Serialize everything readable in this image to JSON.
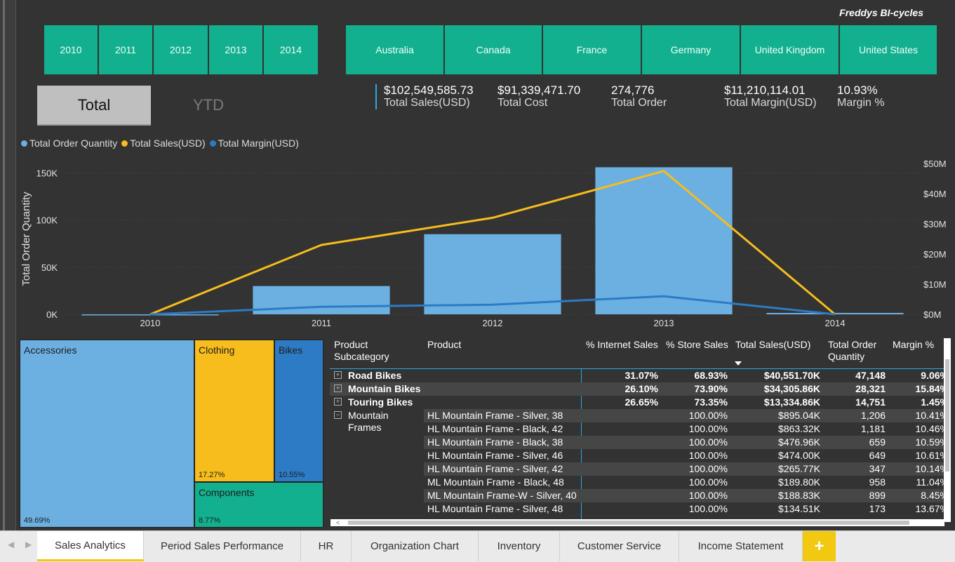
{
  "brand": "Freddys BI-cycles",
  "year_slicers": [
    "2010",
    "2011",
    "2012",
    "2013",
    "2014"
  ],
  "country_slicers": [
    "Australia",
    "Canada",
    "France",
    "Germany",
    "United Kingdom",
    "United States"
  ],
  "toggle": {
    "total": "Total",
    "ytd": "YTD"
  },
  "kpis": [
    {
      "value": "$102,549,585.73",
      "label": "Total Sales(USD)"
    },
    {
      "value": "$91,339,471.70",
      "label": "Total Cost"
    },
    {
      "value": "274,776",
      "label": "Total Order"
    },
    {
      "value": "$11,210,114.01",
      "label": "Total Margin(USD)"
    },
    {
      "value": "10.93%",
      "label": "Margin %"
    }
  ],
  "legend": [
    {
      "label": "Total Order Quantity",
      "color": "#6cb0e2"
    },
    {
      "label": "Total Sales(USD)",
      "color": "#f6bd1c"
    },
    {
      "label": "Total Margin(USD)",
      "color": "#2d7bc4"
    }
  ],
  "chart_data": {
    "type": "bar",
    "categories": [
      "2010",
      "2011",
      "2012",
      "2013",
      "2014"
    ],
    "ylabel": "Total Order Quantity",
    "y_ticks": [
      "0K",
      "50K",
      "100K",
      "150K"
    ],
    "y2_ticks": [
      "$0M",
      "$10M",
      "$20M",
      "$30M",
      "$40M",
      "$50M"
    ],
    "ylim": [
      0,
      160000
    ],
    "y2lim": [
      0,
      50000000
    ],
    "series": [
      {
        "name": "Total Order Quantity",
        "kind": "bar",
        "axis": "left",
        "color": "#6cb0e2",
        "values": [
          0,
          30000,
          85000,
          156000,
          1500
        ]
      },
      {
        "name": "Total Sales(USD)",
        "kind": "line",
        "axis": "right",
        "color": "#f6bd1c",
        "values": [
          0,
          23000000,
          32000000,
          47500000,
          0
        ]
      },
      {
        "name": "Total Margin(USD)",
        "kind": "line",
        "axis": "right",
        "color": "#2d7bc4",
        "values": [
          0,
          2500000,
          3200000,
          6000000,
          0
        ]
      }
    ],
    "grid": true
  },
  "treemap": {
    "accessories": {
      "name": "Accessories",
      "pct": "49.69%",
      "color": "#6cb0e2"
    },
    "clothing": {
      "name": "Clothing",
      "pct": "17.27%",
      "color": "#f6bd1c"
    },
    "bikes": {
      "name": "Bikes",
      "pct": "10.55%",
      "color": "#2d7bc4"
    },
    "components": {
      "name": "Components",
      "pct": "8.77%",
      "color": "#12b08f"
    }
  },
  "matrix": {
    "headers": [
      "Product Subcategory",
      "Product",
      "% Internet Sales",
      "% Store Sales",
      "Total Sales(USD)",
      "Total Order Quantity",
      "Margin %"
    ],
    "group_rows": [
      {
        "sub": "Road Bikes",
        "internet": "31.07%",
        "store": "68.93%",
        "sales": "$40,551.70K",
        "qty": "47,148",
        "margin": "9.06%"
      },
      {
        "sub": "Mountain Bikes",
        "internet": "26.10%",
        "store": "73.90%",
        "sales": "$34,305.86K",
        "qty": "28,321",
        "margin": "15.84%"
      },
      {
        "sub": "Touring Bikes",
        "internet": "26.65%",
        "store": "73.35%",
        "sales": "$13,334.86K",
        "qty": "14,751",
        "margin": "1.45%"
      }
    ],
    "expanded": {
      "sub_line1": "Mountain",
      "sub_line2": "Frames",
      "rows": [
        {
          "product": "HL Mountain Frame - Silver, 38",
          "store": "100.00%",
          "sales": "$895.04K",
          "qty": "1,206",
          "margin": "10.41%"
        },
        {
          "product": "HL Mountain Frame - Black, 42",
          "store": "100.00%",
          "sales": "$863.32K",
          "qty": "1,181",
          "margin": "10.46%"
        },
        {
          "product": "HL Mountain Frame - Black, 38",
          "store": "100.00%",
          "sales": "$476.96K",
          "qty": "659",
          "margin": "10.59%"
        },
        {
          "product": "HL Mountain Frame - Silver, 46",
          "store": "100.00%",
          "sales": "$474.00K",
          "qty": "649",
          "margin": "10.61%"
        },
        {
          "product": "HL Mountain Frame - Silver, 42",
          "store": "100.00%",
          "sales": "$265.77K",
          "qty": "347",
          "margin": "10.14%"
        },
        {
          "product": "ML Mountain Frame - Black, 48",
          "store": "100.00%",
          "sales": "$189.80K",
          "qty": "958",
          "margin": "11.04%"
        },
        {
          "product": "ML Mountain Frame-W - Silver, 40",
          "store": "100.00%",
          "sales": "$188.83K",
          "qty": "899",
          "margin": "8.45%"
        },
        {
          "product": "HL Mountain Frame - Silver, 48",
          "store": "100.00%",
          "sales": "$134.51K",
          "qty": "173",
          "margin": "13.67%"
        }
      ]
    }
  },
  "tabs": [
    "Sales Analytics",
    "Period Sales Performance",
    "HR",
    "Organization Chart",
    "Inventory",
    "Customer Service",
    "Income Statement"
  ],
  "add_tab": "+",
  "colors": {
    "canvas": "#333333",
    "slicer": "#12b08f",
    "tab_accent": "#f2c811"
  }
}
